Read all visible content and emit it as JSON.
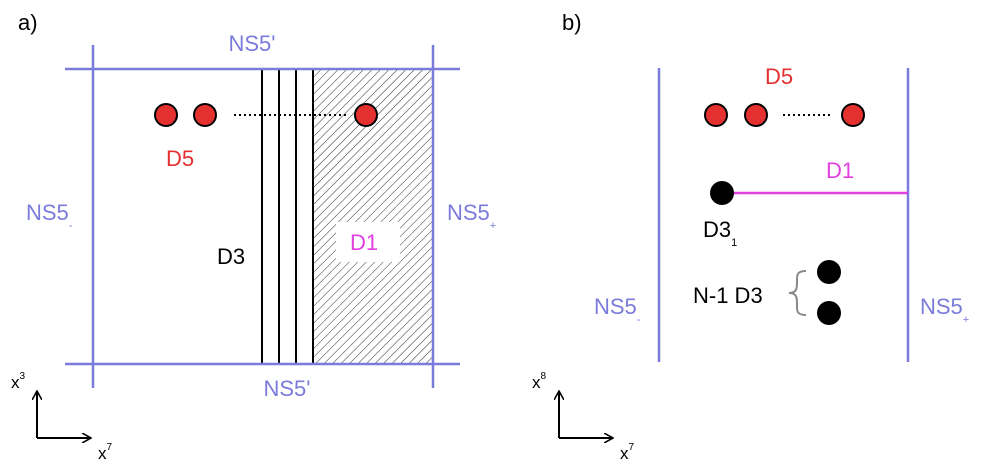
{
  "panel_a": {
    "label": "a)",
    "top_brane": "NS5'",
    "bottom_brane": "NS5'",
    "left_brane": "NS5",
    "left_brane_sub": "-",
    "right_brane": "NS5",
    "right_brane_sub": "+",
    "d5_label": "D5",
    "d3_label": "D3",
    "d1_label": "D1",
    "axis_vertical": "x",
    "axis_vertical_sup": "3",
    "axis_horizontal": "x",
    "axis_horizontal_sup": "7"
  },
  "panel_b": {
    "label": "b)",
    "d5_label": "D5",
    "d1_label": "D1",
    "d3_single": "D3",
    "d3_single_sub": "1",
    "d3_stack": "N-1 D3",
    "left_brane": "NS5",
    "left_brane_sub": "-",
    "right_brane": "NS5",
    "right_brane_sub": "+",
    "axis_vertical": "x",
    "axis_vertical_sup": "8",
    "axis_horizontal": "x",
    "axis_horizontal_sup": "7"
  },
  "colors": {
    "brane": "#7b7bdc",
    "d5": "#e53030",
    "d5_label": "#e53030",
    "d1": "#e040e0",
    "ink": "#000000"
  }
}
